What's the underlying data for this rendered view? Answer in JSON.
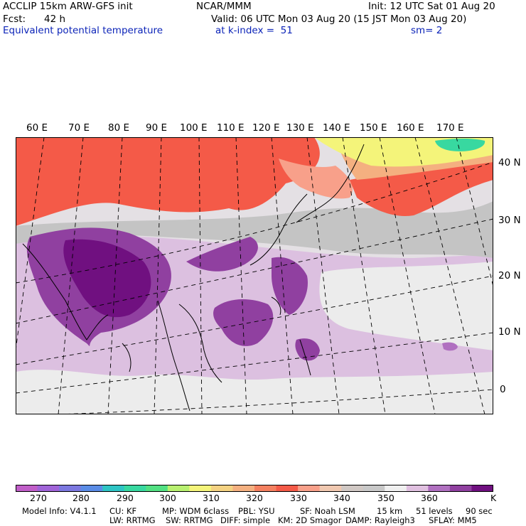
{
  "header": {
    "model": "ACCLIP 15km ARW-GFS init",
    "org": "NCAR/MMM",
    "init": "Init: 12 UTC Sat 01 Aug 20",
    "fcst_label": "Fcst:",
    "fcst_value": "42 h",
    "valid": "Valid: 06 UTC Mon 03 Aug 20 (15 JST Mon 03 Aug 20)",
    "field": "Equivalent potential temperature",
    "level": "at k-index =  51",
    "sm": "sm= 2"
  },
  "map": {
    "longitude_labels": [
      "60 E",
      "70 E",
      "80 E",
      "90 E",
      "100 E",
      "110 E",
      "120 E",
      "130 E",
      "140 E",
      "150 E",
      "160 E",
      "170 E"
    ],
    "latitude_labels": [
      "40 N",
      "30 N",
      "20 N",
      "10 N",
      "0"
    ]
  },
  "colorbar": {
    "colors": [
      "#c05ec8",
      "#a064d8",
      "#7c78e0",
      "#5a8ce6",
      "#2ec4c4",
      "#38d8a0",
      "#52e082",
      "#b8f070",
      "#f4f47a",
      "#f4d282",
      "#f4b080",
      "#f48060",
      "#f45a48",
      "#f8a08a",
      "#f0c8b0",
      "#d0c8c4",
      "#c8c8c8",
      "#f0f0f0",
      "#e0c0e0",
      "#b070c0",
      "#9040a0",
      "#701080"
    ],
    "tick_labels": [
      "270",
      "280",
      "290",
      "300",
      "310",
      "320",
      "330",
      "340",
      "350",
      "360"
    ],
    "unit": "K"
  },
  "footer": {
    "line1": [
      "Model Info: V4.1.1",
      "CU: KF",
      "MP: WDM 6class",
      "PBL: YSU",
      "SF: Noah LSM",
      "15 km",
      "51 levels",
      "90 sec"
    ],
    "line2": [
      "LW: RRTMG",
      "SW: RRTMG",
      "DIFF: simple",
      "KM: 2D Smagor",
      "DAMP: Rayleigh3",
      "SFLAY: MM5"
    ]
  }
}
